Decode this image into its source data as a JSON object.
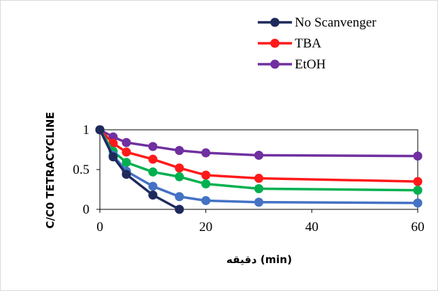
{
  "chart_data": {
    "type": "line",
    "xlabel": "دقیقه (min)",
    "ylabel": "C/C0 TETRACYCLINE",
    "xlim": [
      0,
      60
    ],
    "ylim": [
      0,
      1
    ],
    "x_ticks": [
      "0",
      "20",
      "40",
      "60"
    ],
    "y_ticks": [
      "0",
      "0.5",
      "1"
    ],
    "legend_position": "top-right",
    "grid": false,
    "series": [
      {
        "name": "No Scanvenger",
        "color": "#1f2a5c",
        "in_legend": true,
        "x": [
          0,
          2.5,
          5,
          10,
          15
        ],
        "y": [
          1.0,
          0.66,
          0.44,
          0.18,
          0.0
        ]
      },
      {
        "name": "TBA",
        "color": "#ff1a1a",
        "in_legend": true,
        "x": [
          0,
          2.5,
          5,
          10,
          15,
          20,
          30,
          60
        ],
        "y": [
          1.0,
          0.83,
          0.72,
          0.63,
          0.52,
          0.43,
          0.39,
          0.35
        ]
      },
      {
        "name": "EtOH",
        "color": "#7030a0",
        "in_legend": true,
        "x": [
          0,
          2.5,
          5,
          10,
          15,
          20,
          30,
          60
        ],
        "y": [
          1.0,
          0.91,
          0.84,
          0.79,
          0.74,
          0.71,
          0.68,
          0.67
        ]
      },
      {
        "name": "",
        "color": "#00b050",
        "in_legend": false,
        "x": [
          0,
          2.5,
          5,
          10,
          15,
          20,
          30,
          60
        ],
        "y": [
          1.0,
          0.73,
          0.59,
          0.47,
          0.41,
          0.32,
          0.26,
          0.24
        ]
      },
      {
        "name": "",
        "color": "#4472c4",
        "in_legend": false,
        "x": [
          0,
          2.5,
          5,
          10,
          15,
          20,
          30,
          60
        ],
        "y": [
          1.0,
          0.68,
          0.48,
          0.29,
          0.16,
          0.11,
          0.09,
          0.08
        ]
      }
    ]
  }
}
